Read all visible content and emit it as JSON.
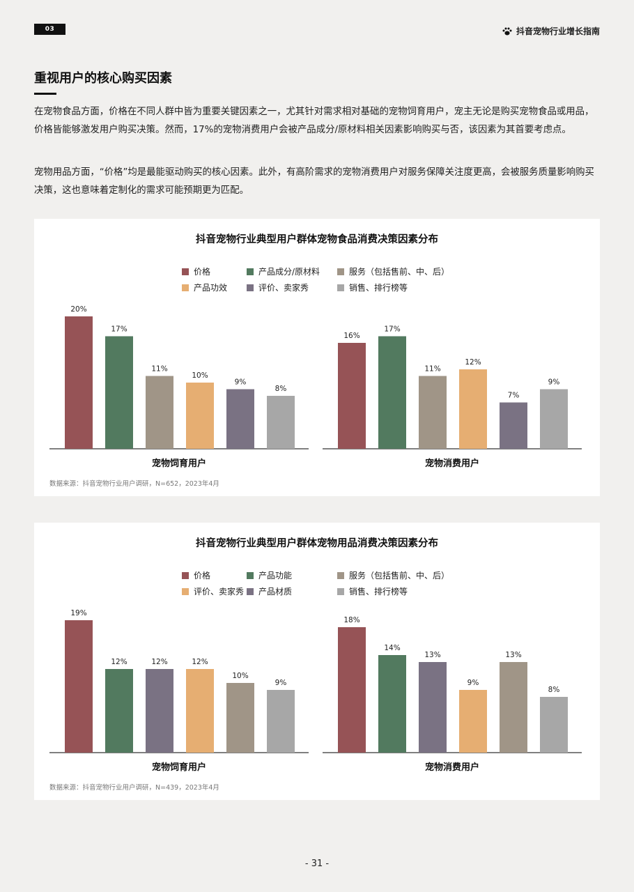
{
  "header": {
    "page_badge": "03",
    "brand": "抖音宠物行业增长指南",
    "brand_icon": "paw-icon"
  },
  "section": {
    "title": "重视用户的核心购买因素",
    "paragraphs": [
      "在宠物食品方面，价格在不同人群中皆为重要关键因素之一，尤其针对需求相对基础的宠物饲育用户，宠主无论是购买宠物食品或用品，价格皆能够激发用户购买决策。然而，17%的宠物消费用户会被产品成分/原材料相关因素影响购买与否，该因素为其首要考虑点。",
      "宠物用品方面，“价格”均是最能驱动购买的核心因素。此外，有高阶需求的宠物消费用户对服务保障关注度更高，会被服务质量影响购买决策，这也意味着定制化的需求可能预期更为匹配。"
    ]
  },
  "chart_data": [
    {
      "type": "bar",
      "title": "抖音宠物行业典型用户群体宠物食品消费决策因素分布",
      "ylim": [
        0,
        20
      ],
      "legend": [
        {
          "label": "价格",
          "color": "#965356"
        },
        {
          "label": "产品成分/原材料",
          "color": "#527a5f"
        },
        {
          "label": "服务（包括售前、中、后）",
          "color": "#a09587"
        },
        {
          "label": "产品功效",
          "color": "#e6ae72"
        },
        {
          "label": "评价、卖家秀",
          "color": "#7a7283"
        },
        {
          "label": "销售、排行榜等",
          "color": "#a7a7a7"
        }
      ],
      "groups": [
        {
          "name": "宠物饲育用户",
          "bars": [
            {
              "label": "价格",
              "value": 20,
              "text": "20%",
              "color": "#965356"
            },
            {
              "label": "产品成分/原材料",
              "value": 17,
              "text": "17%",
              "color": "#527a5f"
            },
            {
              "label": "服务（包括售前、中、后）",
              "value": 11,
              "text": "11%",
              "color": "#a09587"
            },
            {
              "label": "产品功效",
              "value": 10,
              "text": "10%",
              "color": "#e6ae72"
            },
            {
              "label": "评价、卖家秀",
              "value": 9,
              "text": "9%",
              "color": "#7a7283"
            },
            {
              "label": "销售、排行榜等",
              "value": 8,
              "text": "8%",
              "color": "#a7a7a7"
            }
          ]
        },
        {
          "name": "宠物消费用户",
          "bars": [
            {
              "label": "价格",
              "value": 16,
              "text": "16%",
              "color": "#965356"
            },
            {
              "label": "产品成分/原材料",
              "value": 17,
              "text": "17%",
              "color": "#527a5f"
            },
            {
              "label": "服务（包括售前、中、后）",
              "value": 11,
              "text": "11%",
              "color": "#a09587"
            },
            {
              "label": "产品功效",
              "value": 12,
              "text": "12%",
              "color": "#e6ae72"
            },
            {
              "label": "评价、卖家秀",
              "value": 7,
              "text": "7%",
              "color": "#7a7283"
            },
            {
              "label": "销售、排行榜等",
              "value": 9,
              "text": "9%",
              "color": "#a7a7a7"
            }
          ]
        }
      ],
      "source": "数据来源：抖音宠物行业用户调研，N=652，2023年4月"
    },
    {
      "type": "bar",
      "title": "抖音宠物行业典型用户群体宠物用品消费决策因素分布",
      "ylim": [
        0,
        19
      ],
      "legend": [
        {
          "label": "价格",
          "color": "#965356"
        },
        {
          "label": "产品功能",
          "color": "#527a5f"
        },
        {
          "label": "服务（包括售前、中、后）",
          "color": "#a09587"
        },
        {
          "label": "评价、卖家秀",
          "color": "#e6ae72"
        },
        {
          "label": "产品材质",
          "color": "#7a7283"
        },
        {
          "label": "销售、排行榜等",
          "color": "#a7a7a7"
        }
      ],
      "groups": [
        {
          "name": "宠物饲育用户",
          "bars": [
            {
              "label": "价格",
              "value": 19,
              "text": "19%",
              "color": "#965356"
            },
            {
              "label": "产品功能",
              "value": 12,
              "text": "12%",
              "color": "#527a5f"
            },
            {
              "label": "产品材质",
              "value": 12,
              "text": "12%",
              "color": "#7a7283"
            },
            {
              "label": "评价、卖家秀",
              "value": 12,
              "text": "12%",
              "color": "#e6ae72"
            },
            {
              "label": "服务（包括售前、中、后）",
              "value": 10,
              "text": "10%",
              "color": "#a09587"
            },
            {
              "label": "销售、排行榜等",
              "value": 9,
              "text": "9%",
              "color": "#a7a7a7"
            }
          ]
        },
        {
          "name": "宠物消费用户",
          "bars": [
            {
              "label": "价格",
              "value": 18,
              "text": "18%",
              "color": "#965356"
            },
            {
              "label": "产品功能",
              "value": 14,
              "text": "14%",
              "color": "#527a5f"
            },
            {
              "label": "产品材质",
              "value": 13,
              "text": "13%",
              "color": "#7a7283"
            },
            {
              "label": "评价、卖家秀",
              "value": 9,
              "text": "9%",
              "color": "#e6ae72"
            },
            {
              "label": "服务（包括售前、中、后）",
              "value": 13,
              "text": "13%",
              "color": "#a09587"
            },
            {
              "label": "销售、排行榜等",
              "value": 8,
              "text": "8%",
              "color": "#a7a7a7"
            }
          ]
        }
      ],
      "source": "数据来源：抖音宠物行业用户调研，N=439，2023年4月"
    }
  ],
  "footer": {
    "page_number": "- 31 -"
  }
}
